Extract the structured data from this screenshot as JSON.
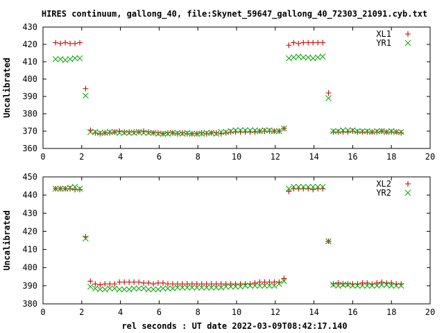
{
  "title": "HIRES continuum, gallong_40, file:Skynet_59647_gallong_40_72303_21091.cyb.txt",
  "xlabel": "rel seconds : UT date 2022-03-09T08:42:17.140",
  "colors": {
    "plus": "#cc0000",
    "cross": "#11aa11"
  },
  "chart_data": [
    {
      "type": "scatter",
      "ylabel": "Uncalibrated",
      "xlim": [
        0,
        20
      ],
      "ylim": [
        360,
        430
      ],
      "xticks": [
        0,
        2,
        4,
        6,
        8,
        10,
        12,
        14,
        16,
        18,
        20
      ],
      "yticks": [
        360,
        370,
        380,
        390,
        400,
        410,
        420,
        430
      ],
      "legend_position": "top-right",
      "series": [
        {
          "name": "XL1",
          "marker": "plus",
          "x": [
            0.65,
            0.9,
            1.15,
            1.4,
            1.65,
            1.9,
            2.2,
            2.45,
            2.7,
            2.95,
            3.2,
            3.45,
            3.7,
            3.95,
            4.2,
            4.45,
            4.7,
            4.95,
            5.2,
            5.45,
            5.7,
            5.95,
            6.2,
            6.45,
            6.7,
            6.95,
            7.2,
            7.45,
            7.7,
            7.95,
            8.2,
            8.45,
            8.7,
            8.95,
            9.2,
            9.45,
            9.7,
            9.95,
            10.2,
            10.45,
            10.7,
            10.95,
            11.2,
            11.45,
            11.7,
            11.95,
            12.2,
            12.45,
            12.7,
            12.95,
            13.2,
            13.45,
            13.7,
            13.95,
            14.2,
            14.45,
            14.75,
            15.0,
            15.25,
            15.5,
            15.75,
            16.0,
            16.25,
            16.5,
            16.75,
            17.0,
            17.25,
            17.5,
            17.75,
            18.0,
            18.25,
            18.5
          ],
          "y": [
            421,
            420.5,
            421,
            420.5,
            420.5,
            421,
            394.5,
            370.5,
            369,
            368.5,
            369,
            369,
            369.5,
            370,
            369.5,
            369.5,
            369.5,
            369.5,
            370,
            369.5,
            369,
            369,
            368.5,
            369,
            369,
            368.5,
            369,
            368.5,
            368.5,
            368.5,
            369,
            368.5,
            369,
            369,
            368.5,
            369,
            369.5,
            369.5,
            369.5,
            369.5,
            369.5,
            369.5,
            370,
            370,
            370,
            370,
            370,
            371.5,
            419.5,
            421,
            420.5,
            421,
            421,
            421,
            421,
            421,
            392,
            369.5,
            369.5,
            369.5,
            369.5,
            370,
            369.5,
            369.5,
            369.5,
            369.5,
            369.5,
            370,
            369.5,
            369.5,
            369.5,
            369
          ]
        },
        {
          "name": "YR1",
          "marker": "cross",
          "x": [
            0.65,
            0.9,
            1.15,
            1.4,
            1.65,
            1.9,
            2.2,
            2.45,
            2.7,
            2.95,
            3.2,
            3.45,
            3.7,
            3.95,
            4.2,
            4.45,
            4.7,
            4.95,
            5.2,
            5.45,
            5.7,
            5.95,
            6.2,
            6.45,
            6.7,
            6.95,
            7.2,
            7.45,
            7.7,
            7.95,
            8.2,
            8.45,
            8.7,
            8.95,
            9.2,
            9.45,
            9.7,
            9.95,
            10.2,
            10.45,
            10.7,
            10.95,
            11.2,
            11.45,
            11.7,
            11.95,
            12.2,
            12.45,
            12.7,
            12.95,
            13.2,
            13.45,
            13.7,
            13.95,
            14.2,
            14.45,
            14.75,
            15.0,
            15.25,
            15.5,
            15.75,
            16.0,
            16.25,
            16.5,
            16.75,
            17.0,
            17.25,
            17.5,
            17.75,
            18.0,
            18.25,
            18.5
          ],
          "y": [
            411.5,
            411.5,
            411,
            411.5,
            412,
            412,
            390.5,
            369.5,
            369.5,
            369,
            369,
            369.5,
            369.5,
            369,
            369,
            369,
            369,
            369.5,
            369,
            369,
            369,
            368.5,
            368.5,
            368.5,
            369,
            369,
            368.5,
            369,
            368.5,
            368.5,
            368.5,
            369,
            369,
            368.5,
            369.5,
            369.5,
            370,
            370.5,
            370.5,
            370.5,
            370.5,
            370.5,
            370,
            370.5,
            370.5,
            370,
            370,
            371.5,
            412,
            412.5,
            413,
            412.5,
            412.5,
            412,
            412.5,
            413,
            389,
            370,
            370,
            370.5,
            370.5,
            370.5,
            370,
            370,
            370,
            369.5,
            370,
            370,
            369.5,
            370,
            369.5,
            369.5
          ]
        }
      ]
    },
    {
      "type": "scatter",
      "ylabel": "Uncalibrated",
      "xlim": [
        0,
        20
      ],
      "ylim": [
        380,
        450
      ],
      "xticks": [
        0,
        2,
        4,
        6,
        8,
        10,
        12,
        14,
        16,
        18,
        20
      ],
      "yticks": [
        380,
        390,
        400,
        410,
        420,
        430,
        440,
        450
      ],
      "legend_position": "top-right",
      "series": [
        {
          "name": "XL2",
          "marker": "plus",
          "x": [
            0.65,
            0.9,
            1.15,
            1.4,
            1.65,
            1.9,
            2.2,
            2.45,
            2.7,
            2.95,
            3.2,
            3.45,
            3.7,
            3.95,
            4.2,
            4.45,
            4.7,
            4.95,
            5.2,
            5.45,
            5.7,
            5.95,
            6.2,
            6.45,
            6.7,
            6.95,
            7.2,
            7.45,
            7.7,
            7.95,
            8.2,
            8.45,
            8.7,
            8.95,
            9.2,
            9.45,
            9.7,
            9.95,
            10.2,
            10.45,
            10.7,
            10.95,
            11.2,
            11.45,
            11.7,
            11.95,
            12.2,
            12.45,
            12.7,
            12.95,
            13.2,
            13.45,
            13.7,
            13.95,
            14.2,
            14.45,
            14.75,
            15.0,
            15.25,
            15.5,
            15.75,
            16.0,
            16.25,
            16.5,
            16.75,
            17.0,
            17.25,
            17.5,
            17.75,
            18.0,
            18.25,
            18.5
          ],
          "y": [
            443.5,
            443.5,
            443.5,
            443.5,
            443,
            443,
            417,
            392.5,
            391,
            390.5,
            391,
            391,
            391,
            392,
            392,
            392,
            392,
            392,
            391.5,
            391.5,
            391,
            391.5,
            391.5,
            391,
            391,
            391,
            391,
            391,
            391,
            391,
            391,
            391,
            391,
            391,
            391,
            391,
            391,
            391,
            391,
            391,
            391,
            391.5,
            392,
            392,
            392,
            392,
            392,
            394,
            442,
            443.5,
            443.5,
            443.5,
            443.5,
            443,
            443.5,
            443.5,
            414.5,
            391,
            391.5,
            391,
            391,
            391,
            391,
            391.5,
            391.5,
            391,
            391.5,
            392,
            391.5,
            391.5,
            391,
            391
          ]
        },
        {
          "name": "YR2",
          "marker": "cross",
          "x": [
            0.65,
            0.9,
            1.15,
            1.4,
            1.65,
            1.9,
            2.2,
            2.45,
            2.7,
            2.95,
            3.2,
            3.45,
            3.7,
            3.95,
            4.2,
            4.45,
            4.7,
            4.95,
            5.2,
            5.45,
            5.7,
            5.95,
            6.2,
            6.45,
            6.7,
            6.95,
            7.2,
            7.45,
            7.7,
            7.95,
            8.2,
            8.45,
            8.7,
            8.95,
            9.2,
            9.45,
            9.7,
            9.95,
            10.2,
            10.45,
            10.7,
            10.95,
            11.2,
            11.45,
            11.7,
            11.95,
            12.2,
            12.45,
            12.7,
            12.95,
            13.2,
            13.45,
            13.7,
            13.95,
            14.2,
            14.45,
            14.75,
            15.0,
            15.25,
            15.5,
            15.75,
            16.0,
            16.25,
            16.5,
            16.75,
            17.0,
            17.25,
            17.5,
            17.75,
            18.0,
            18.25,
            18.5
          ],
          "y": [
            443.5,
            443.5,
            443.5,
            444,
            444.5,
            443.5,
            416,
            389.5,
            388.5,
            388,
            388,
            388.5,
            388.5,
            388,
            388,
            388,
            388.5,
            388.5,
            388.5,
            388,
            388,
            388,
            388.5,
            388.5,
            388.5,
            389,
            389,
            389,
            389,
            389,
            389,
            389,
            389,
            389,
            389,
            389.5,
            389.5,
            389.5,
            389.5,
            390,
            390,
            390,
            390,
            390,
            390,
            390,
            391,
            392.5,
            443.5,
            444.5,
            444.5,
            444.5,
            444.5,
            444.5,
            444.5,
            444.5,
            414.5,
            390.5,
            390,
            390.5,
            390.5,
            390,
            390,
            390,
            390,
            390,
            390,
            390.5,
            390.5,
            390,
            390,
            390
          ]
        }
      ]
    }
  ]
}
